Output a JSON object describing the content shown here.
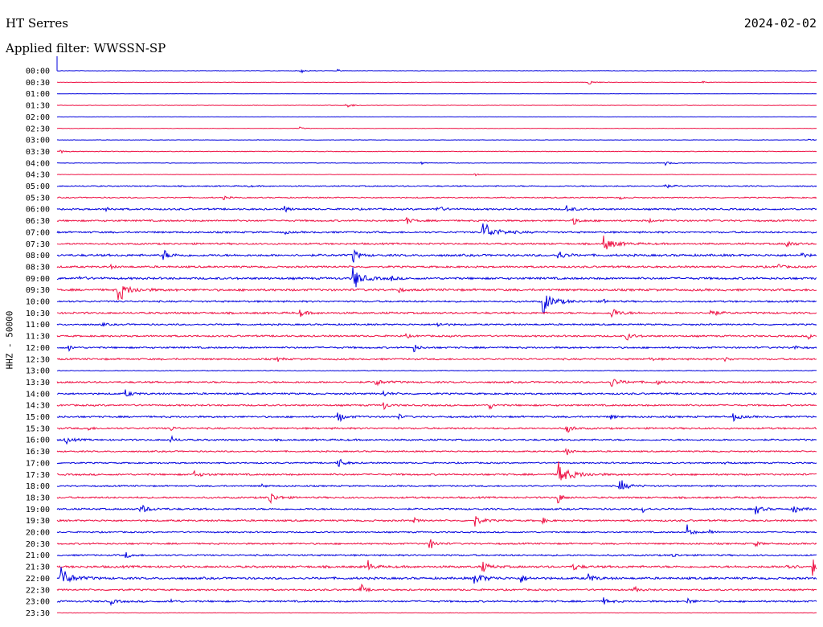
{
  "header": {
    "station": "HT Serres",
    "date": "2024-02-02",
    "filter": "Applied filter: WWSSN-SP"
  },
  "axis": {
    "ylabel": "HHZ - 50000"
  },
  "colors": {
    "blue": "#0000dd",
    "red": "#ee1144"
  },
  "chart_data": {
    "type": "line",
    "title": "HT Serres",
    "date": "2024-02-02",
    "channel": "HHZ - 50000",
    "filter": "WWSSN-SP",
    "row_interval_minutes": 30,
    "rows": [
      {
        "time": "00:00",
        "color": "blue",
        "noise": 0.3,
        "events": [
          [
            0.32,
            3,
            2.5
          ],
          [
            0.37,
            1.5,
            1.5
          ]
        ]
      },
      {
        "time": "00:30",
        "color": "red",
        "noise": 0.3,
        "events": [
          [
            0.7,
            3,
            3
          ],
          [
            0.85,
            1.5,
            2
          ]
        ]
      },
      {
        "time": "01:00",
        "color": "blue",
        "noise": 0.2,
        "events": []
      },
      {
        "time": "01:30",
        "color": "red",
        "noise": 0.3,
        "events": [
          [
            0.38,
            4,
            3
          ]
        ]
      },
      {
        "time": "02:00",
        "color": "blue",
        "noise": 0.2,
        "events": []
      },
      {
        "time": "02:30",
        "color": "red",
        "noise": 0.3,
        "events": [
          [
            0.32,
            1.5,
            2
          ]
        ]
      },
      {
        "time": "03:00",
        "color": "blue",
        "noise": 0.3,
        "events": [
          [
            0.99,
            2,
            2
          ]
        ]
      },
      {
        "time": "03:30",
        "color": "red",
        "noise": 0.5,
        "events": [
          [
            0.005,
            2,
            2
          ]
        ]
      },
      {
        "time": "04:00",
        "color": "blue",
        "noise": 0.4,
        "events": [
          [
            0.48,
            1.5,
            2
          ],
          [
            0.8,
            3,
            3
          ]
        ]
      },
      {
        "time": "04:30",
        "color": "red",
        "noise": 0.3,
        "events": [
          [
            0.55,
            2,
            2
          ]
        ]
      },
      {
        "time": "05:00",
        "color": "blue",
        "noise": 0.8,
        "events": [
          [
            0.25,
            1.5,
            2
          ],
          [
            0.8,
            2,
            4
          ]
        ]
      },
      {
        "time": "05:30",
        "color": "red",
        "noise": 0.8,
        "events": [
          [
            0.22,
            2,
            2
          ],
          [
            0.74,
            1.5,
            3
          ]
        ]
      },
      {
        "time": "06:00",
        "color": "blue",
        "noise": 1.2,
        "events": [
          [
            0.065,
            3,
            2
          ],
          [
            0.3,
            4,
            2
          ],
          [
            0.5,
            8,
            2
          ],
          [
            0.67,
            5,
            3
          ]
        ]
      },
      {
        "time": "06:30",
        "color": "red",
        "noise": 1.2,
        "events": [
          [
            0.46,
            4,
            3
          ],
          [
            0.68,
            4,
            3
          ],
          [
            0.78,
            2,
            2
          ]
        ]
      },
      {
        "time": "07:00",
        "color": "blue",
        "noise": 1.2,
        "events": [
          [
            0.3,
            2,
            2
          ],
          [
            0.56,
            13,
            6
          ]
        ]
      },
      {
        "time": "07:30",
        "color": "red",
        "noise": 1.2,
        "events": [
          [
            0.72,
            10,
            5
          ],
          [
            0.96,
            6,
            3
          ]
        ]
      },
      {
        "time": "08:00",
        "color": "blue",
        "noise": 1.5,
        "events": [
          [
            0.14,
            7,
            3
          ],
          [
            0.39,
            12,
            2
          ],
          [
            0.66,
            6,
            3
          ],
          [
            0.98,
            3,
            2
          ]
        ]
      },
      {
        "time": "08:30",
        "color": "red",
        "noise": 1.3,
        "events": [
          [
            0.07,
            2,
            2
          ],
          [
            0.95,
            4,
            2
          ]
        ]
      },
      {
        "time": "09:00",
        "color": "blue",
        "noise": 1.5,
        "events": [
          [
            0.03,
            3,
            2
          ],
          [
            0.39,
            15,
            4
          ],
          [
            0.44,
            3,
            2
          ]
        ]
      },
      {
        "time": "09:30",
        "color": "red",
        "noise": 1.5,
        "events": [
          [
            0.08,
            14,
            5
          ],
          [
            0.45,
            3,
            2
          ]
        ]
      },
      {
        "time": "10:00",
        "color": "blue",
        "noise": 1.2,
        "events": [
          [
            0.64,
            15,
            5
          ],
          [
            0.72,
            2,
            2
          ]
        ]
      },
      {
        "time": "10:30",
        "color": "red",
        "noise": 1.3,
        "events": [
          [
            0.32,
            4,
            3
          ],
          [
            0.73,
            6,
            4
          ],
          [
            0.86,
            6,
            3
          ]
        ]
      },
      {
        "time": "11:00",
        "color": "blue",
        "noise": 1.1,
        "events": [
          [
            0.06,
            2,
            2
          ],
          [
            0.5,
            3,
            3
          ]
        ]
      },
      {
        "time": "11:30",
        "color": "red",
        "noise": 1.2,
        "events": [
          [
            0.46,
            2,
            2
          ],
          [
            0.75,
            5,
            3
          ],
          [
            0.99,
            3,
            2
          ]
        ]
      },
      {
        "time": "12:00",
        "color": "blue",
        "noise": 1.2,
        "events": [
          [
            0.015,
            4,
            2
          ],
          [
            0.47,
            5,
            2
          ],
          [
            0.97,
            3,
            2
          ]
        ]
      },
      {
        "time": "12:30",
        "color": "red",
        "noise": 1.2,
        "events": [
          [
            0.29,
            3,
            2
          ],
          [
            0.78,
            3,
            2
          ],
          [
            0.88,
            3,
            2
          ]
        ]
      },
      {
        "time": "13:00",
        "color": "blue",
        "noise": 0.5,
        "events": []
      },
      {
        "time": "13:30",
        "color": "red",
        "noise": 1.2,
        "events": [
          [
            0.42,
            4,
            4
          ],
          [
            0.73,
            5,
            5
          ],
          [
            0.79,
            3,
            2
          ]
        ]
      },
      {
        "time": "14:00",
        "color": "blue",
        "noise": 1.2,
        "events": [
          [
            0.09,
            5,
            3
          ],
          [
            0.43,
            3,
            3
          ]
        ]
      },
      {
        "time": "14:30",
        "color": "red",
        "noise": 1.2,
        "events": [
          [
            0.43,
            5,
            2
          ],
          [
            0.57,
            4,
            2
          ]
        ]
      },
      {
        "time": "15:00",
        "color": "blue",
        "noise": 1.2,
        "events": [
          [
            0.37,
            7,
            3
          ],
          [
            0.45,
            3,
            2
          ],
          [
            0.73,
            3,
            2
          ],
          [
            0.89,
            5,
            3
          ]
        ]
      },
      {
        "time": "15:30",
        "color": "red",
        "noise": 1.2,
        "events": [
          [
            0.04,
            3,
            2
          ],
          [
            0.15,
            3,
            2
          ],
          [
            0.67,
            12,
            2
          ]
        ]
      },
      {
        "time": "16:00",
        "color": "blue",
        "noise": 1.2,
        "events": [
          [
            0.01,
            5,
            3
          ],
          [
            0.15,
            4,
            2
          ]
        ]
      },
      {
        "time": "16:30",
        "color": "red",
        "noise": 1.0,
        "events": [
          [
            0.67,
            6,
            2
          ]
        ]
      },
      {
        "time": "17:00",
        "color": "blue",
        "noise": 1.0,
        "events": [
          [
            0.37,
            6,
            3
          ],
          [
            0.88,
            2,
            2
          ]
        ]
      },
      {
        "time": "17:30",
        "color": "red",
        "noise": 1.2,
        "events": [
          [
            0.18,
            4,
            4
          ],
          [
            0.66,
            16,
            6
          ]
        ]
      },
      {
        "time": "18:00",
        "color": "blue",
        "noise": 1.0,
        "events": [
          [
            0.27,
            2,
            2
          ],
          [
            0.74,
            9,
            4
          ]
        ]
      },
      {
        "time": "18:30",
        "color": "red",
        "noise": 1.2,
        "events": [
          [
            0.28,
            9,
            3
          ],
          [
            0.66,
            8,
            2
          ]
        ]
      },
      {
        "time": "19:00",
        "color": "blue",
        "noise": 1.2,
        "events": [
          [
            0.11,
            6,
            4
          ],
          [
            0.77,
            5,
            2
          ],
          [
            0.92,
            6,
            3
          ],
          [
            0.97,
            5,
            3
          ]
        ]
      },
      {
        "time": "19:30",
        "color": "red",
        "noise": 1.2,
        "events": [
          [
            0.47,
            3,
            2
          ],
          [
            0.55,
            8,
            3
          ],
          [
            0.64,
            3,
            2
          ]
        ]
      },
      {
        "time": "20:00",
        "color": "blue",
        "noise": 1.0,
        "events": [
          [
            0.83,
            9,
            2
          ],
          [
            0.86,
            3,
            2
          ]
        ]
      },
      {
        "time": "20:30",
        "color": "red",
        "noise": 1.1,
        "events": [
          [
            0.49,
            7,
            3
          ],
          [
            0.92,
            4,
            2
          ]
        ]
      },
      {
        "time": "21:00",
        "color": "blue",
        "noise": 1.1,
        "events": [
          [
            0.09,
            4,
            3
          ],
          [
            0.81,
            4,
            2
          ]
        ]
      },
      {
        "time": "21:30",
        "color": "red",
        "noise": 1.5,
        "events": [
          [
            0.41,
            8,
            2
          ],
          [
            0.56,
            7,
            3
          ],
          [
            0.68,
            4,
            3
          ],
          [
            0.96,
            4,
            4
          ],
          [
            0.995,
            10,
            2
          ]
        ]
      },
      {
        "time": "22:00",
        "color": "blue",
        "noise": 1.5,
        "events": [
          [
            0.005,
            13,
            5
          ],
          [
            0.55,
            8,
            5
          ],
          [
            0.61,
            5,
            3
          ],
          [
            0.7,
            6,
            3
          ]
        ]
      },
      {
        "time": "22:30",
        "color": "red",
        "noise": 1.2,
        "events": [
          [
            0.4,
            7,
            2
          ],
          [
            0.76,
            4,
            2
          ]
        ]
      },
      {
        "time": "23:00",
        "color": "blue",
        "noise": 1.2,
        "events": [
          [
            0.07,
            4,
            3
          ],
          [
            0.15,
            3,
            2
          ],
          [
            0.72,
            4,
            3
          ],
          [
            0.83,
            5,
            2
          ]
        ]
      },
      {
        "time": "23:30",
        "color": "red",
        "noise": 0.3,
        "events": []
      }
    ]
  }
}
